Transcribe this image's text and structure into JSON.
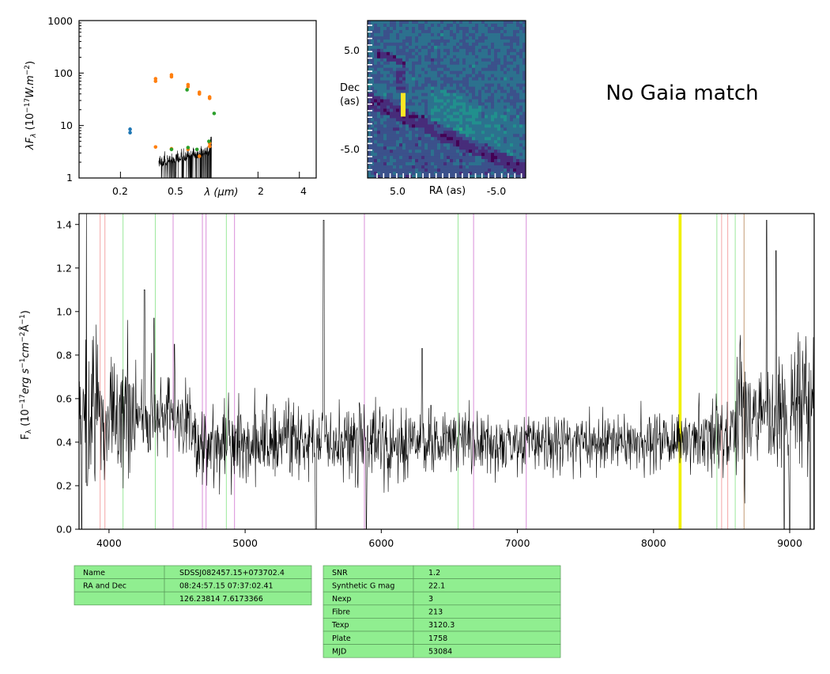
{
  "sed_panel": {
    "xticks": [
      "0.2",
      "0.5",
      "2",
      "4"
    ],
    "xtick_values": [
      0.2,
      0.5,
      2,
      4
    ],
    "xlabel": "λ (μm)",
    "yticks": [
      "1",
      "10",
      "100",
      "1000"
    ],
    "ylabel": "λF_λ (10^-17 W.m^-2)",
    "yscale": "log",
    "xscale": "log",
    "series": [
      {
        "color": "#1f77b4",
        "points": [
          [
            0.235,
            8.5
          ],
          [
            0.235,
            7.3
          ]
        ]
      },
      {
        "color": "#ff7f0e",
        "points": [
          [
            0.36,
            78
          ],
          [
            0.36,
            70
          ],
          [
            0.47,
            92
          ],
          [
            0.47,
            85
          ],
          [
            0.62,
            60
          ],
          [
            0.62,
            55
          ],
          [
            0.75,
            43
          ],
          [
            0.75,
            40
          ],
          [
            0.89,
            35
          ],
          [
            0.89,
            33
          ],
          [
            0.36,
            3.9
          ],
          [
            0.47,
            3.6
          ],
          [
            0.62,
            3.5
          ],
          [
            0.75,
            2.6
          ],
          [
            0.89,
            4.0
          ],
          [
            0.89,
            4.6
          ]
        ]
      },
      {
        "color": "#2ca02c",
        "points": [
          [
            0.61,
            48
          ],
          [
            0.47,
            3.5
          ],
          [
            0.62,
            3.8
          ],
          [
            0.72,
            3.5
          ],
          [
            0.88,
            5.0
          ],
          [
            0.96,
            17
          ]
        ]
      }
    ]
  },
  "image_panel": {
    "yticks": [
      "5.0",
      "-5.0"
    ],
    "ylabel_line1": "Dec",
    "ylabel_line2": "(as)",
    "xticks": [
      "5.0",
      "-5.0"
    ],
    "xlabel": "RA (as)",
    "colormap": "viridis"
  },
  "gaia_text": "No Gaia match",
  "chart_data": {
    "type": "line",
    "xlim": [
      3780,
      9180
    ],
    "ylim": [
      0.0,
      1.45
    ],
    "xticks": [
      "4000",
      "5000",
      "6000",
      "7000",
      "8000",
      "9000"
    ],
    "xtick_values": [
      4000,
      5000,
      6000,
      7000,
      8000,
      9000
    ],
    "yticks": [
      "0.0",
      "0.2",
      "0.4",
      "0.6",
      "0.8",
      "1.0",
      "1.2",
      "1.4"
    ],
    "ytick_values": [
      0.0,
      0.2,
      0.4,
      0.6,
      0.8,
      1.0,
      1.2,
      1.4
    ],
    "ylabel": "F_λ (10^-17 erg s^-1 cm^-2 Å^-1)",
    "approx_flux_level": 0.4,
    "line_color": "#000000",
    "emission_lines": {
      "red": [
        3935,
        3970,
        8500,
        8545,
        8665
      ],
      "green": [
        4103,
        4340,
        4862,
        6564,
        8465,
        8600
      ],
      "purple": [
        4471,
        4686,
        4713,
        4922,
        5876,
        6678,
        7065
      ],
      "yellow": [
        8190,
        8200
      ],
      "tan": [
        8665
      ]
    },
    "peaks": [
      [
        3800,
        1.38
      ],
      [
        3835,
        1.48
      ],
      [
        4260,
        1.1
      ],
      [
        4330,
        0.97
      ],
      [
        4480,
        0.85
      ],
      [
        5577,
        1.42
      ],
      [
        6300,
        0.83
      ],
      [
        6364,
        0.57
      ],
      [
        8830,
        1.42
      ],
      [
        8900,
        1.28
      ],
      [
        9110,
        0.76
      ],
      [
        9150,
        0.0
      ]
    ],
    "dips": [
      [
        3800,
        0.0
      ],
      [
        3840,
        0.2
      ],
      [
        5520,
        0.0
      ],
      [
        5890,
        0.0
      ],
      [
        8960,
        0.0
      ],
      [
        9000,
        0.0
      ],
      [
        9180,
        0.0
      ]
    ]
  },
  "table_left": {
    "rows": [
      [
        "Name",
        "SDSSJ082457.15+073702.4"
      ],
      [
        "RA and Dec",
        "08:24:57.15    07:37:02.41"
      ],
      [
        "",
        "126.23814    7.6173366"
      ]
    ],
    "bg": "#90ee90"
  },
  "table_right": {
    "rows": [
      [
        "SNR",
        "1.2"
      ],
      [
        "Synthetic G mag",
        "22.1"
      ],
      [
        "Nexp",
        "3"
      ],
      [
        "Fibre",
        "213"
      ],
      [
        "Texp",
        "3120.3"
      ],
      [
        "Plate",
        "1758"
      ],
      [
        "MJD",
        "53084"
      ]
    ],
    "bg": "#90ee90"
  }
}
